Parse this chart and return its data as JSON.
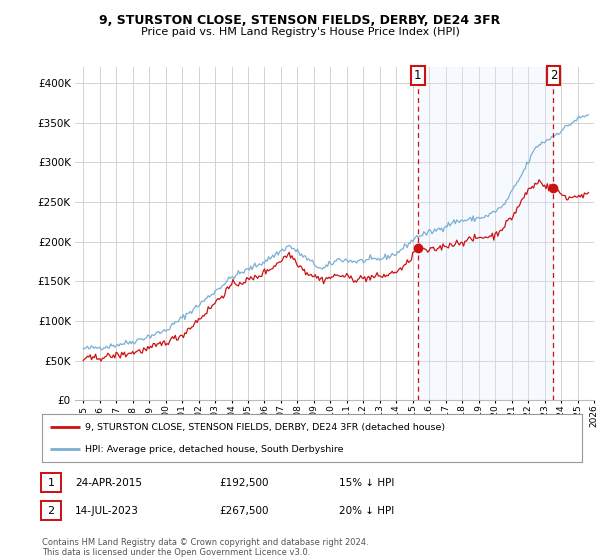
{
  "title": "9, STURSTON CLOSE, STENSON FIELDS, DERBY, DE24 3FR",
  "subtitle": "Price paid vs. HM Land Registry's House Price Index (HPI)",
  "legend_line1": "9, STURSTON CLOSE, STENSON FIELDS, DERBY, DE24 3FR (detached house)",
  "legend_line2": "HPI: Average price, detached house, South Derbyshire",
  "annotation1_date": "24-APR-2015",
  "annotation1_price": "£192,500",
  "annotation1_hpi": "15% ↓ HPI",
  "annotation2_date": "14-JUL-2023",
  "annotation2_price": "£267,500",
  "annotation2_hpi": "20% ↓ HPI",
  "footer": "Contains HM Land Registry data © Crown copyright and database right 2024.\nThis data is licensed under the Open Government Licence v3.0.",
  "hpi_color": "#7bafd4",
  "price_color": "#cc1111",
  "vline_color": "#cc1111",
  "shade_color": "#ddeeff",
  "background_color": "#ffffff",
  "grid_color": "#cccccc",
  "ylim": [
    0,
    420000
  ],
  "yticks": [
    0,
    50000,
    100000,
    150000,
    200000,
    250000,
    300000,
    350000,
    400000
  ],
  "sale1_x": 2015.31,
  "sale1_y": 192500,
  "sale2_x": 2023.54,
  "sale2_y": 267500,
  "xlim": [
    1994.5,
    2026.0
  ],
  "xticks": [
    1995,
    1996,
    1997,
    1998,
    1999,
    2000,
    2001,
    2002,
    2003,
    2004,
    2005,
    2006,
    2007,
    2008,
    2009,
    2010,
    2011,
    2012,
    2013,
    2014,
    2015,
    2016,
    2017,
    2018,
    2019,
    2020,
    2021,
    2022,
    2023,
    2024,
    2025,
    2026
  ]
}
